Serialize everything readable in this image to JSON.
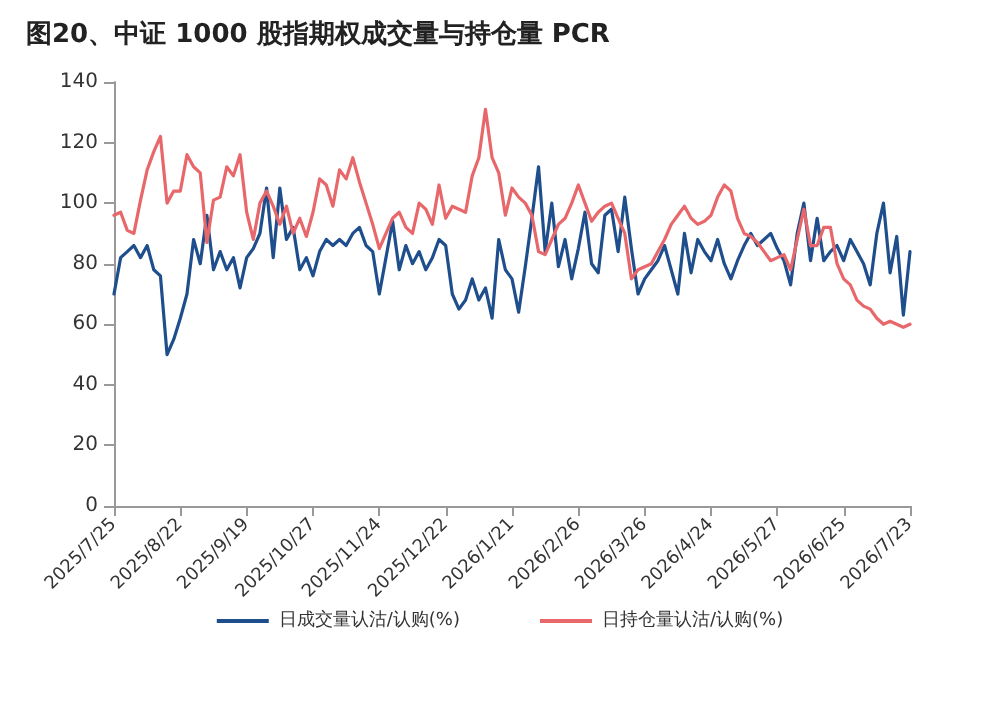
{
  "chart_data": {
    "type": "line",
    "title": "图20、中证 1000 股指期权成交量与持仓量 PCR",
    "categories": [
      "2025/7/25",
      null,
      null,
      null,
      null,
      null,
      null,
      null,
      null,
      null,
      "2025/8/22",
      null,
      null,
      null,
      null,
      null,
      null,
      null,
      null,
      null,
      "2025/9/19",
      null,
      null,
      null,
      null,
      null,
      null,
      null,
      null,
      null,
      "2025/10/27",
      null,
      null,
      null,
      null,
      null,
      null,
      null,
      null,
      null,
      "2025/11/24",
      null,
      null,
      null,
      null,
      null,
      null,
      null,
      null,
      null,
      "2025/12/22",
      null,
      null,
      null,
      null,
      null,
      null,
      null,
      null,
      null,
      "2026/1/21",
      null,
      null,
      null,
      null,
      null,
      null,
      null,
      null,
      null,
      "2026/2/26",
      null,
      null,
      null,
      null,
      null,
      null,
      null,
      null,
      null,
      "2026/3/26",
      null,
      null,
      null,
      null,
      null,
      null,
      null,
      null,
      null,
      "2026/4/24",
      null,
      null,
      null,
      null,
      null,
      null,
      null,
      null,
      null,
      "2026/5/27",
      null,
      null,
      null,
      null,
      null,
      null,
      null,
      null,
      null,
      "2026/6/25",
      null,
      null,
      null,
      null,
      null,
      null,
      null,
      null,
      null,
      "2026/7/23"
    ],
    "series": [
      {
        "name": "日成交量认沽/认购(%)",
        "color": "#1f4e8c",
        "values": [
          70,
          82,
          84,
          86,
          82,
          86,
          78,
          76,
          50,
          55,
          62,
          70,
          88,
          80,
          96,
          78,
          84,
          78,
          82,
          72,
          82,
          85,
          90,
          105,
          82,
          105,
          88,
          92,
          78,
          82,
          76,
          84,
          88,
          86,
          88,
          86,
          90,
          92,
          86,
          84,
          70,
          82,
          94,
          78,
          86,
          80,
          84,
          78,
          82,
          88,
          86,
          70,
          65,
          68,
          75,
          68,
          72,
          62,
          88,
          78,
          75,
          64,
          79,
          95,
          112,
          84,
          100,
          79,
          88,
          75,
          85,
          97,
          80,
          77,
          96,
          98,
          84,
          102,
          85,
          70,
          75,
          78,
          81,
          86,
          78,
          70,
          90,
          77,
          88,
          84,
          81,
          88,
          80,
          75,
          81,
          86,
          90,
          86,
          88,
          90,
          85,
          81,
          73,
          90,
          100,
          81,
          95,
          81,
          84,
          86,
          81,
          88,
          84,
          80,
          73,
          90,
          100,
          77,
          89,
          63,
          84
        ]
      },
      {
        "name": "日持仓量认沽/认购(%)",
        "color": "#e8676b",
        "values": [
          96,
          97,
          91,
          90,
          101,
          111,
          117,
          122,
          100,
          104,
          104,
          116,
          112,
          110,
          87,
          101,
          102,
          112,
          109,
          116,
          97,
          88,
          100,
          104,
          99,
          93,
          99,
          90,
          95,
          89,
          97,
          108,
          106,
          99,
          111,
          108,
          115,
          107,
          100,
          93,
          85,
          90,
          95,
          97,
          92,
          90,
          100,
          98,
          93,
          106,
          95,
          99,
          98,
          97,
          109,
          115,
          131,
          115,
          110,
          96,
          105,
          102,
          100,
          96,
          84,
          83,
          88,
          93,
          95,
          100,
          106,
          100,
          94,
          97,
          99,
          100,
          95,
          90,
          75,
          78,
          79,
          80,
          84,
          88,
          93,
          96,
          99,
          95,
          93,
          94,
          96,
          102,
          106,
          104,
          95,
          90,
          89,
          87,
          84,
          81,
          82,
          83,
          78,
          88,
          98,
          86,
          86,
          92,
          92,
          80,
          75,
          73,
          68,
          66,
          65,
          62,
          60,
          61,
          60,
          59,
          60
        ]
      }
    ],
    "ylim": [
      0,
      140
    ],
    "yticks": [
      0,
      20,
      40,
      60,
      80,
      100,
      120,
      140
    ],
    "grid": false,
    "legend": "bottom",
    "marker": "none",
    "line_style": "solid"
  }
}
